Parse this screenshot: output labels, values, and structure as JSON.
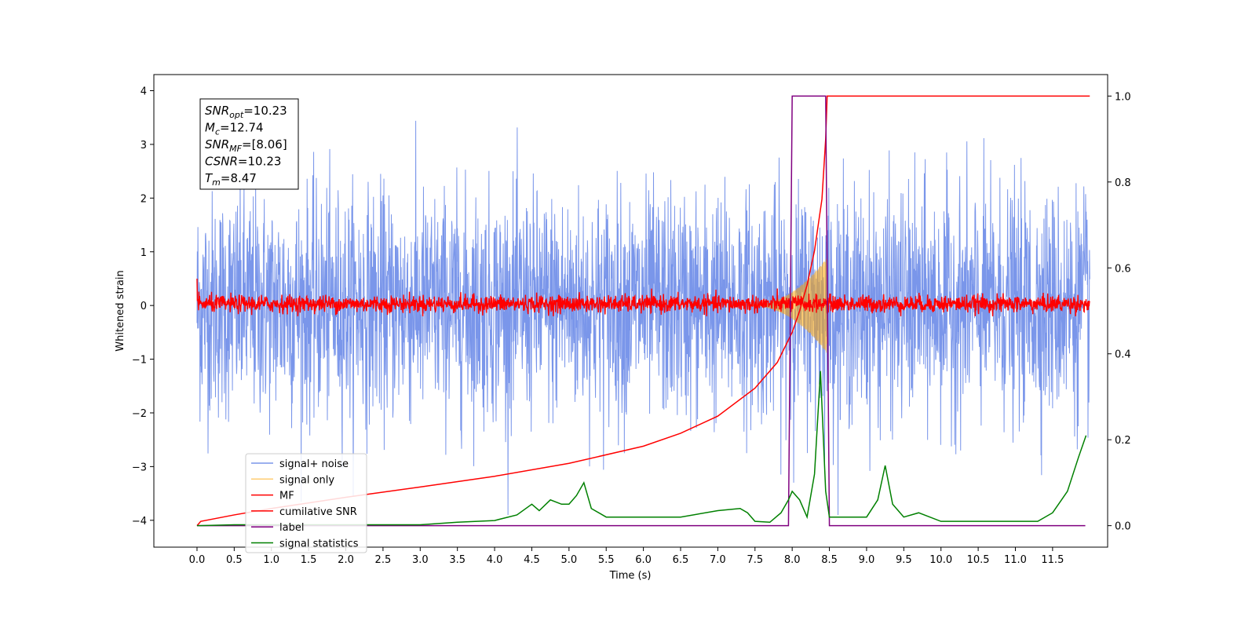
{
  "chart_data": {
    "type": "line",
    "xlabel": "Time (s)",
    "ylabel": "Whitened strain",
    "xlim": [
      -0.58,
      12.24
    ],
    "ylim": [
      -4.5,
      4.3
    ],
    "y2lim": [
      -0.05,
      1.05
    ],
    "grid": false,
    "legend_position": "lower-left",
    "x_ticks": [
      "0.0",
      "0.5",
      "1.0",
      "1.5",
      "2.0",
      "2.5",
      "3.0",
      "3.5",
      "4.0",
      "4.5",
      "5.0",
      "5.5",
      "6.0",
      "6.5",
      "7.0",
      "7.5",
      "8.0",
      "8.5",
      "9.0",
      "9.5",
      "10.0",
      "10.5",
      "11.0",
      "11.5"
    ],
    "y_ticks": [
      "4",
      "3",
      "2",
      "1",
      "0",
      "−1",
      "−2",
      "−3",
      "−4"
    ],
    "y2_ticks": [
      "1.0",
      "0.8",
      "0.6",
      "0.4",
      "0.2",
      "0.0"
    ],
    "annotation": [
      {
        "sym": "SNR",
        "sub": "opt",
        "val": "=10.23"
      },
      {
        "sym": "M",
        "sub": "c",
        "val": "=12.74"
      },
      {
        "sym": "SNR",
        "sub": "MF",
        "val": "=[8.06]"
      },
      {
        "sym": "CSNR",
        "sub": "",
        "val": "=10.23"
      },
      {
        "sym": "T",
        "sub": "m",
        "val": "=8.47"
      }
    ],
    "series": [
      {
        "name": "signal+ noise",
        "color": "#4169E1",
        "axis": "left",
        "kind": "noise",
        "x_range": [
          0.0,
          12.0
        ],
        "y_range": [
          -3.9,
          3.9
        ]
      },
      {
        "name": "signal only",
        "color": "#FFA500",
        "axis": "left",
        "kind": "chirp",
        "x_range": [
          7.4,
          8.47
        ],
        "y_range": [
          -0.9,
          0.9
        ]
      },
      {
        "name": "MF",
        "color": "#FF0000",
        "axis": "left",
        "kind": "noise",
        "x_range": [
          0.0,
          12.0
        ],
        "y_range": [
          -0.2,
          0.5
        ]
      },
      {
        "name": "cumilative SNR",
        "color": "#FF0000",
        "axis": "right",
        "x": [
          0.0,
          0.05,
          0.5,
          1.0,
          2.0,
          3.0,
          4.0,
          5.0,
          6.0,
          6.5,
          7.0,
          7.5,
          7.8,
          8.0,
          8.1,
          8.2,
          8.3,
          8.4,
          8.45,
          8.47,
          8.5,
          12.0
        ],
        "y": [
          0.0,
          0.01,
          0.025,
          0.04,
          0.066,
          0.09,
          0.115,
          0.145,
          0.185,
          0.215,
          0.255,
          0.32,
          0.38,
          0.45,
          0.5,
          0.56,
          0.64,
          0.76,
          0.9,
          1.0,
          1.0,
          1.0
        ]
      },
      {
        "name": "label",
        "color": "#800080",
        "axis": "right",
        "x": [
          0.0,
          7.95,
          8.0,
          8.45,
          8.5,
          11.94
        ],
        "y": [
          0.0,
          0.0,
          1.0,
          1.0,
          0.0,
          0.0
        ]
      },
      {
        "name": "signal statistics",
        "color": "#008000",
        "axis": "right",
        "x": [
          0.0,
          0.5,
          1.0,
          2.0,
          3.0,
          3.5,
          4.0,
          4.3,
          4.5,
          4.6,
          4.75,
          4.9,
          5.0,
          5.1,
          5.2,
          5.3,
          5.5,
          6.0,
          6.5,
          7.0,
          7.3,
          7.4,
          7.5,
          7.7,
          7.85,
          7.95,
          8.0,
          8.1,
          8.2,
          8.3,
          8.38,
          8.45,
          8.5,
          8.7,
          9.0,
          9.15,
          9.25,
          9.35,
          9.5,
          9.7,
          10.0,
          10.5,
          11.0,
          11.3,
          11.5,
          11.7,
          11.85,
          11.95
        ],
        "y": [
          0.0,
          0.002,
          0.002,
          0.002,
          0.002,
          0.008,
          0.012,
          0.025,
          0.05,
          0.035,
          0.06,
          0.05,
          0.05,
          0.07,
          0.1,
          0.04,
          0.02,
          0.02,
          0.02,
          0.035,
          0.04,
          0.03,
          0.01,
          0.008,
          0.03,
          0.06,
          0.08,
          0.06,
          0.02,
          0.12,
          0.36,
          0.08,
          0.02,
          0.02,
          0.02,
          0.06,
          0.14,
          0.05,
          0.02,
          0.03,
          0.01,
          0.01,
          0.01,
          0.01,
          0.03,
          0.08,
          0.16,
          0.21
        ]
      }
    ]
  }
}
